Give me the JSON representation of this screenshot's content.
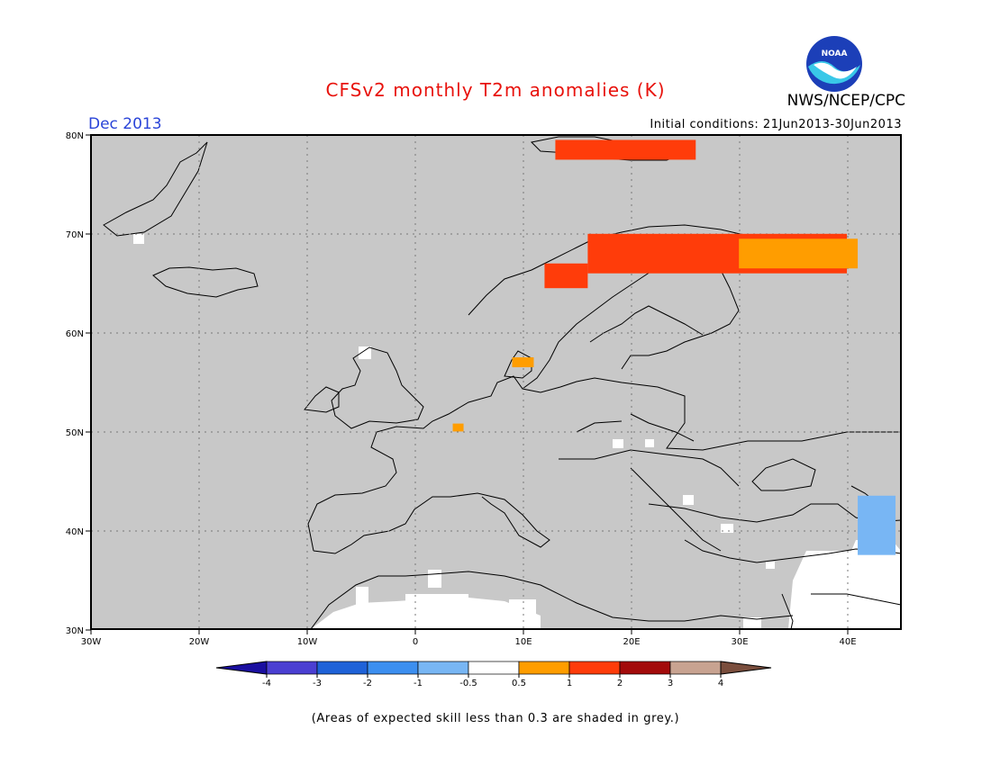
{
  "header": {
    "title": "CFSv2 monthly T2m anomalies (K)",
    "agency": "NWS/NCEP/CPC",
    "logo_text": "NOAA",
    "month": "Dec 2013",
    "initial_conditions": "Initial conditions: 21Jun2013-30Jun2013"
  },
  "map": {
    "lat_ticks": [
      "80N",
      "70N",
      "60N",
      "50N",
      "40N",
      "30N"
    ],
    "lon_ticks": [
      "30W",
      "20W",
      "10W",
      "0",
      "10E",
      "20E",
      "30E",
      "40E"
    ],
    "lon_range": [
      -30,
      45
    ],
    "lat_range": [
      30,
      80
    ],
    "gridlines": "dotted",
    "background_color": "#c8c8c8",
    "anomaly_regions": [
      {
        "name": "svalbard",
        "class": "1 to 2",
        "lon": [
          13,
          26
        ],
        "lat": [
          77.5,
          79.5
        ]
      },
      {
        "name": "northern-fennoscandia",
        "class": "1 to 2",
        "lon": [
          16,
          40
        ],
        "lat": [
          66,
          70
        ]
      },
      {
        "name": "norway-coast",
        "class": "1 to 2",
        "lon": [
          12,
          16
        ],
        "lat": [
          64.5,
          67
        ]
      },
      {
        "name": "kola-arkhangelsk",
        "class": "0.5 to 1",
        "lon": [
          30,
          41
        ],
        "lat": [
          66.5,
          69.5
        ]
      },
      {
        "name": "denmark",
        "class": "0.5 to 1",
        "lon": [
          9,
          11
        ],
        "lat": [
          56.5,
          57.5
        ]
      },
      {
        "name": "belgium",
        "class": "0.5 to 1",
        "lon": [
          3.5,
          4.5
        ],
        "lat": [
          50,
          50.8
        ]
      },
      {
        "name": "caucasus",
        "class": "-1 to -0.5",
        "lon": [
          41,
          44.5
        ],
        "lat": [
          37.5,
          43.5
        ]
      }
    ]
  },
  "colorbar": {
    "labels": [
      "-4",
      "-3",
      "-2",
      "-1",
      "-0.5",
      "0.5",
      "1",
      "2",
      "3",
      "4"
    ],
    "colors": [
      "#1a0fa0",
      "#4b3fd2",
      "#1f62d8",
      "#3c8ff0",
      "#78b6f4",
      "#ffffff",
      "#ff9d00",
      "#ff3c0a",
      "#a30b0b",
      "#c8a391",
      "#7a4e3d"
    ]
  },
  "footer": {
    "note": "(Areas of expected skill less than 0.3 are shaded in grey.)"
  }
}
